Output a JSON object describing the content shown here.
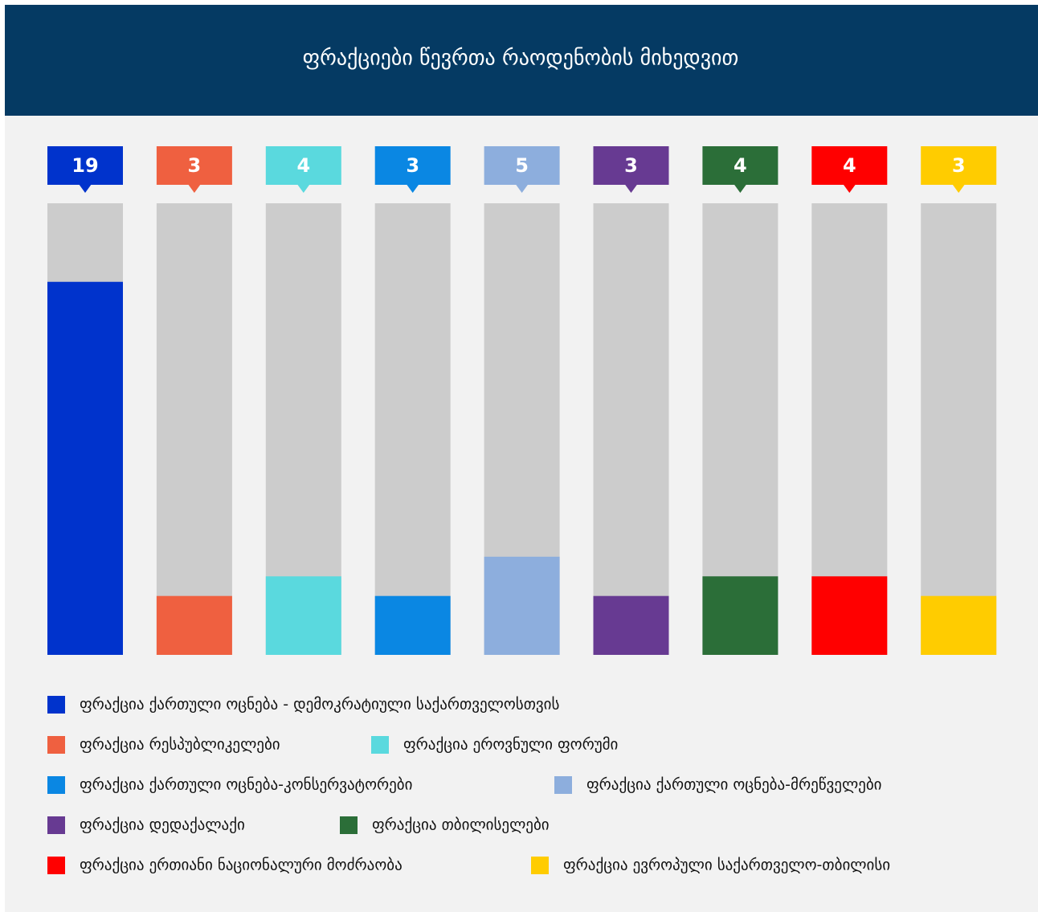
{
  "chart_data": {
    "type": "bar",
    "title": "ფრაქციები წევრთა რაოდენობის მიხედვით",
    "categories": [
      "ფრაქცია ქართული ოცნება - დემოკრატიული  საქართველოსთვის",
      "ფრაქცია რესპუბლიკელები",
      "ფრაქცია ეროვნული ფორუმი",
      "ფრაქცია ქართული ოცნება-კონსერვატორები",
      "ფრაქცია ქართული ოცნება-მრეწველები",
      "ფრაქცია დედაქალაქი",
      "ფრაქცია თბილისელები",
      "ფრაქცია ერთიანი ნაციონალური მოძრაობა",
      "ფრაქცია ევროპული საქართველო-თბილისი"
    ],
    "values": [
      19,
      3,
      4,
      3,
      5,
      3,
      4,
      4,
      3
    ],
    "colors": [
      "#0033cc",
      "#ef6040",
      "#5ad9de",
      "#0a87e3",
      "#8daedd",
      "#673a92",
      "#2b6e38",
      "#ff0000",
      "#ffcc00"
    ],
    "ylim": [
      0,
      23
    ]
  }
}
